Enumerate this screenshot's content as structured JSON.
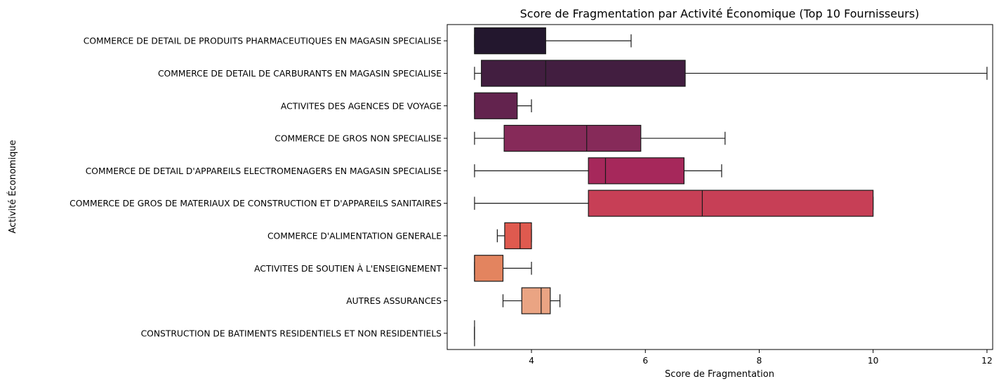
{
  "chart_data": {
    "type": "boxplot",
    "orientation": "horizontal",
    "title": "Score de Fragmentation par Activité Économique (Top 10 Fournisseurs)",
    "xlabel": "Score de Fragmentation",
    "ylabel": "Activité Économique",
    "xlim": [
      2.52,
      12.1
    ],
    "xticks": [
      4,
      6,
      8,
      10,
      12
    ],
    "grid": false,
    "categories": [
      {
        "label": "COMMERCE DE DETAIL DE PRODUITS PHARMACEUTIQUES EN MAGASIN SPECIALISE",
        "whisker_low": 3.0,
        "q1": 3.0,
        "median": 3.0,
        "q3": 4.25,
        "whisker_high": 5.75,
        "color": "#23172e"
      },
      {
        "label": "COMMERCE DE DETAIL DE CARBURANTS EN MAGASIN SPECIALISE",
        "whisker_low": 3.0,
        "q1": 3.12,
        "median": 4.25,
        "q3": 6.7,
        "whisker_high": 12.0,
        "color": "#421e40"
      },
      {
        "label": "ACTIVITES DES AGENCES DE VOYAGE",
        "whisker_low": 3.0,
        "q1": 3.0,
        "median": 3.0,
        "q3": 3.75,
        "whisker_high": 4.0,
        "color": "#63234e"
      },
      {
        "label": "COMMERCE DE GROS NON SPECIALISE",
        "whisker_low": 3.0,
        "q1": 3.52,
        "median": 4.97,
        "q3": 5.92,
        "whisker_high": 7.4,
        "color": "#862a59"
      },
      {
        "label": "COMMERCE DE DETAIL D'APPAREILS ELECTROMENAGERS EN MAGASIN SPECIALISE",
        "whisker_low": 3.0,
        "q1": 5.0,
        "median": 5.3,
        "q3": 6.68,
        "whisker_high": 7.34,
        "color": "#a6285b"
      },
      {
        "label": "COMMERCE DE GROS DE MATERIAUX DE CONSTRUCTION ET D'APPAREILS SANITAIRES",
        "whisker_low": 3.0,
        "q1": 5.0,
        "median": 7.0,
        "q3": 10.0,
        "whisker_high": 10.0,
        "color": "#c73f56"
      },
      {
        "label": "COMMERCE D'ALIMENTATION GENERALE",
        "whisker_low": 3.4,
        "q1": 3.53,
        "median": 3.8,
        "q3": 4.0,
        "whisker_high": 4.0,
        "color": "#df5a4f"
      },
      {
        "label": "ACTIVITES DE SOUTIEN À L'ENSEIGNEMENT",
        "whisker_low": 3.0,
        "q1": 3.0,
        "median": 3.0,
        "q3": 3.5,
        "whisker_high": 4.0,
        "color": "#e3845f"
      },
      {
        "label": "AUTRES ASSURANCES",
        "whisker_low": 3.5,
        "q1": 3.83,
        "median": 4.17,
        "q3": 4.33,
        "whisker_high": 4.5,
        "color": "#eaa483"
      },
      {
        "label": "CONSTRUCTION DE BATIMENTS RESIDENTIELS ET NON RESIDENTIELS",
        "whisker_low": 3.0,
        "q1": 3.0,
        "median": 3.0,
        "q3": 3.0,
        "whisker_high": 3.0,
        "color": "#f1c8a8"
      }
    ]
  }
}
